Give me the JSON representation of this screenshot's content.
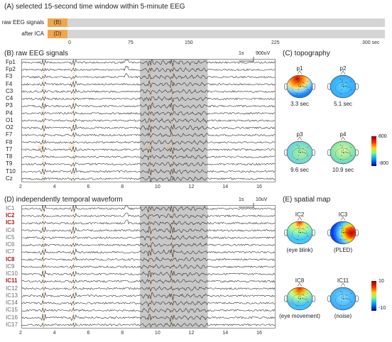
{
  "panelA": {
    "title": "(A) selected 15-second time window within 5-minute EEG",
    "rows": [
      {
        "label": "raw EEG signals",
        "selection": "(B)"
      },
      {
        "label": "after ICA",
        "selection": "(D)"
      }
    ],
    "ticks": [
      "0",
      "75",
      "150",
      "225",
      "300 sec"
    ]
  },
  "panelB": {
    "title": "(B) raw EEG signals",
    "scale": {
      "time": "1s",
      "amp": "900uV"
    },
    "channels": [
      "Fp1",
      "Fp2",
      "F3",
      "F4",
      "C3",
      "C4",
      "P3",
      "P4",
      "O1",
      "O2",
      "F7",
      "F8",
      "T7",
      "T8",
      "T9",
      "T10",
      "Cz"
    ],
    "xticks": [
      "2",
      "4",
      "6",
      "8",
      "10",
      "12",
      "14",
      "16"
    ],
    "markers": [
      "p1",
      "p2",
      "p3",
      "p4"
    ]
  },
  "panelC": {
    "title": "(C) topography",
    "maps": [
      {
        "name": "p1",
        "time": "3.3 sec"
      },
      {
        "name": "p2",
        "time": "5.1 sec"
      },
      {
        "name": "p3",
        "time": "9.6 sec"
      },
      {
        "name": "p4",
        "time": "10.9 sec"
      }
    ],
    "colorbar": {
      "max": "800",
      "min": "-800"
    }
  },
  "panelD": {
    "title": "(D) independently temporal waveform",
    "scale": {
      "time": "1s",
      "amp": "10uV"
    },
    "components": [
      {
        "label": "IC1",
        "highlight": false
      },
      {
        "label": "IC2",
        "highlight": true
      },
      {
        "label": "IC3",
        "highlight": true
      },
      {
        "label": "IC4",
        "highlight": false
      },
      {
        "label": "IC5",
        "highlight": false
      },
      {
        "label": "IC6",
        "highlight": false
      },
      {
        "label": "IC7",
        "highlight": false
      },
      {
        "label": "IC8",
        "highlight": true
      },
      {
        "label": "IC9",
        "highlight": false
      },
      {
        "label": "IC10",
        "highlight": false
      },
      {
        "label": "IC11",
        "highlight": true
      },
      {
        "label": "IC12",
        "highlight": false
      },
      {
        "label": "IC13",
        "highlight": false
      },
      {
        "label": "IC14",
        "highlight": false
      },
      {
        "label": "IC15",
        "highlight": false
      },
      {
        "label": "IC16",
        "highlight": false
      },
      {
        "label": "IC17",
        "highlight": false
      }
    ],
    "xticks": [
      "2",
      "4",
      "6",
      "8",
      "10",
      "12",
      "14",
      "16"
    ]
  },
  "panelE": {
    "title": "(E) spatial map",
    "maps": [
      {
        "name": "IC2",
        "caption": "(eye blink)"
      },
      {
        "name": "IC3",
        "caption": "(PLED)"
      },
      {
        "name": "IC8",
        "caption": "(eye movement)"
      },
      {
        "name": "IC11",
        "caption": "(noise)"
      }
    ],
    "colorbar": {
      "max": "10",
      "min": "-10"
    }
  },
  "colors": {
    "selection": "#f2a64a",
    "highlight_window": "#c8c8c8",
    "marker_line": "#e3a85a",
    "label_red": "#b01818"
  }
}
